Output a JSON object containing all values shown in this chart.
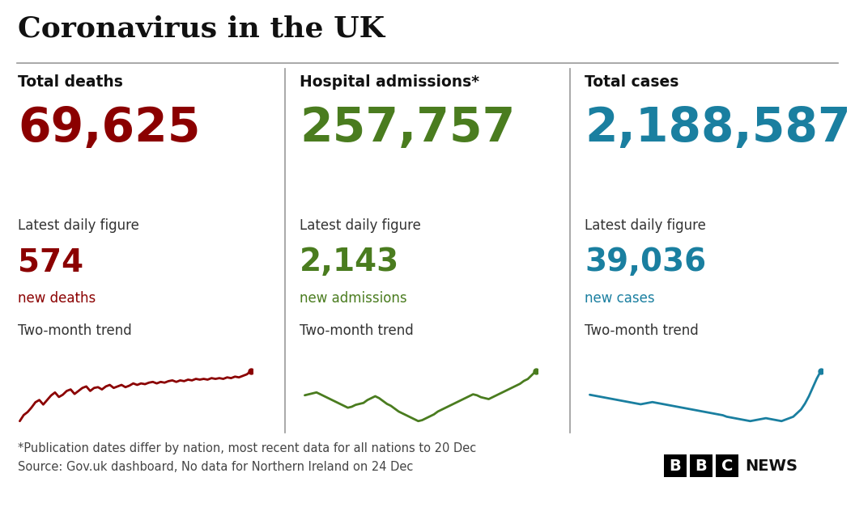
{
  "title": "Coronavirus in the UK",
  "bg_color": "#ffffff",
  "title_color": "#111111",
  "title_fontsize": 26,
  "sections": [
    {
      "label": "Total deaths",
      "total": "69,625",
      "total_color": "#8b0000",
      "daily_label": "Latest daily figure",
      "daily_value": "574",
      "daily_color": "#8b0000",
      "daily_sublabel": "new deaths",
      "daily_sublabel_color": "#8b0000",
      "trend_label": "Two-month trend",
      "trend_color": "#8b0000",
      "trend_x": [
        0,
        1,
        2,
        3,
        4,
        5,
        6,
        7,
        8,
        9,
        10,
        11,
        12,
        13,
        14,
        15,
        16,
        17,
        18,
        19,
        20,
        21,
        22,
        23,
        24,
        25,
        26,
        27,
        28,
        29,
        30,
        31,
        32,
        33,
        34,
        35,
        36,
        37,
        38,
        39,
        40,
        41,
        42,
        43,
        44,
        45,
        46,
        47,
        48,
        49,
        50,
        51,
        52,
        53,
        54,
        55,
        56,
        57,
        58,
        59
      ],
      "trend_y": [
        0.1,
        0.18,
        0.22,
        0.28,
        0.35,
        0.38,
        0.32,
        0.38,
        0.44,
        0.48,
        0.42,
        0.45,
        0.5,
        0.52,
        0.46,
        0.5,
        0.54,
        0.56,
        0.5,
        0.54,
        0.55,
        0.52,
        0.56,
        0.58,
        0.54,
        0.56,
        0.58,
        0.55,
        0.57,
        0.6,
        0.58,
        0.6,
        0.59,
        0.61,
        0.62,
        0.6,
        0.62,
        0.61,
        0.63,
        0.64,
        0.62,
        0.64,
        0.63,
        0.65,
        0.64,
        0.66,
        0.65,
        0.66,
        0.65,
        0.67,
        0.66,
        0.67,
        0.66,
        0.68,
        0.67,
        0.69,
        0.68,
        0.7,
        0.72,
        0.76
      ]
    },
    {
      "label": "Hospital admissions*",
      "total": "257,757",
      "total_color": "#4a7c1f",
      "daily_label": "Latest daily figure",
      "daily_value": "2,143",
      "daily_color": "#4a7c1f",
      "daily_sublabel": "new admissions",
      "daily_sublabel_color": "#4a7c1f",
      "trend_label": "Two-month trend",
      "trend_color": "#4a7c1f",
      "trend_x": [
        0,
        1,
        2,
        3,
        4,
        5,
        6,
        7,
        8,
        9,
        10,
        11,
        12,
        13,
        14,
        15,
        16,
        17,
        18,
        19,
        20,
        21,
        22,
        23,
        24,
        25,
        26,
        27,
        28,
        29,
        30,
        31,
        32,
        33,
        34,
        35,
        36,
        37,
        38,
        39,
        40,
        41,
        42,
        43,
        44,
        45,
        46,
        47,
        48,
        49,
        50,
        51,
        52,
        53,
        54,
        55,
        56,
        57,
        58,
        59
      ],
      "trend_y": [
        0.55,
        0.56,
        0.57,
        0.58,
        0.56,
        0.54,
        0.52,
        0.5,
        0.48,
        0.46,
        0.44,
        0.42,
        0.43,
        0.45,
        0.46,
        0.47,
        0.5,
        0.52,
        0.54,
        0.52,
        0.49,
        0.46,
        0.44,
        0.41,
        0.38,
        0.36,
        0.34,
        0.32,
        0.3,
        0.28,
        0.29,
        0.31,
        0.33,
        0.35,
        0.38,
        0.4,
        0.42,
        0.44,
        0.46,
        0.48,
        0.5,
        0.52,
        0.54,
        0.56,
        0.55,
        0.53,
        0.52,
        0.51,
        0.53,
        0.55,
        0.57,
        0.59,
        0.61,
        0.63,
        0.65,
        0.67,
        0.7,
        0.72,
        0.76,
        0.8
      ]
    },
    {
      "label": "Total cases",
      "total": "2,188,587",
      "total_color": "#1a7fa0",
      "daily_label": "Latest daily figure",
      "daily_value": "39,036",
      "daily_color": "#1a7fa0",
      "daily_sublabel": "new cases",
      "daily_sublabel_color": "#1a7fa0",
      "trend_label": "Two-month trend",
      "trend_color": "#1a7fa0",
      "trend_x": [
        0,
        1,
        2,
        3,
        4,
        5,
        6,
        7,
        8,
        9,
        10,
        11,
        12,
        13,
        14,
        15,
        16,
        17,
        18,
        19,
        20,
        21,
        22,
        23,
        24,
        25,
        26,
        27,
        28,
        29,
        30,
        31,
        32,
        33,
        34,
        35,
        36,
        37,
        38,
        39,
        40,
        41,
        42,
        43,
        44,
        45,
        46,
        47,
        48,
        49,
        50,
        51,
        52,
        53,
        54,
        55,
        56,
        57,
        58,
        59
      ],
      "trend_y": [
        0.6,
        0.59,
        0.58,
        0.57,
        0.56,
        0.55,
        0.54,
        0.53,
        0.52,
        0.51,
        0.5,
        0.49,
        0.48,
        0.47,
        0.48,
        0.49,
        0.5,
        0.49,
        0.48,
        0.47,
        0.46,
        0.45,
        0.44,
        0.43,
        0.42,
        0.41,
        0.4,
        0.39,
        0.38,
        0.37,
        0.36,
        0.35,
        0.34,
        0.33,
        0.32,
        0.3,
        0.29,
        0.28,
        0.27,
        0.26,
        0.25,
        0.24,
        0.25,
        0.26,
        0.27,
        0.28,
        0.27,
        0.26,
        0.25,
        0.24,
        0.26,
        0.28,
        0.3,
        0.35,
        0.4,
        0.48,
        0.58,
        0.7,
        0.82,
        0.92
      ]
    }
  ],
  "footnote1": "*Publication dates differ by nation, most recent data for all nations to 20 Dec",
  "footnote2": "Source: Gov.uk dashboard, No data for Northern Ireland on 24 Dec",
  "footnote_color": "#444444",
  "footnote_fontsize": 10.5,
  "divider_color": "#999999"
}
